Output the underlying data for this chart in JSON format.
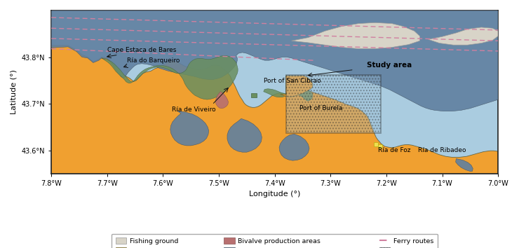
{
  "xlim": [
    -7.8,
    -7.0
  ],
  "ylim": [
    43.55,
    43.9
  ],
  "xlabel": "Longitude (°)",
  "ylabel": "Latitude (°)",
  "xticks": [
    -7.8,
    -7.7,
    -7.6,
    -7.5,
    -7.4,
    -7.3,
    -7.2,
    -7.1,
    -7.0
  ],
  "yticks": [
    43.6,
    43.7,
    43.8
  ],
  "xtick_labels": [
    "7.8°W",
    "7.7°W",
    "7.6°W",
    "7.5°W",
    "7.4°W",
    "7.3°W",
    "7.2°W",
    "7.1°W",
    "7.0°W"
  ],
  "ytick_labels": [
    "43.6°N",
    "43.7°N",
    "43.8°N"
  ],
  "sea_color": "#aacce0",
  "land_color": "#f0a030",
  "fishing_ground_color": "#d8d4c8",
  "bivalve_color": "#b87070",
  "sci_color": "#6080a0",
  "spab_color": "#6a8f60",
  "stock_shellfish_color": "#f0e050",
  "ferry_color": "#d080a0",
  "study_hatch_color": "#98b8d0",
  "figsize": [
    7.4,
    3.54
  ],
  "dpi": 100
}
